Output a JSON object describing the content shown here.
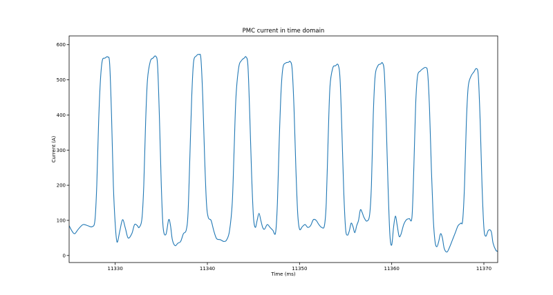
{
  "chart_data": {
    "type": "line",
    "title": "PMC current in time domain",
    "xlabel": "Time (ms)",
    "ylabel": "Current (A)",
    "xlim": [
      11325,
      11371.5
    ],
    "ylim": [
      -20,
      625
    ],
    "xticks": [
      11330,
      11340,
      11350,
      11360,
      11370
    ],
    "yticks": [
      0,
      100,
      200,
      300,
      400,
      500,
      600
    ],
    "grid": false,
    "line_color": "#1f77b4",
    "series": [
      {
        "name": "",
        "points": [
          [
            11325.0,
            85
          ],
          [
            11325.3,
            70
          ],
          [
            11325.6,
            62
          ],
          [
            11326.0,
            75
          ],
          [
            11326.5,
            88
          ],
          [
            11327.0,
            85
          ],
          [
            11327.5,
            82
          ],
          [
            11327.8,
            100
          ],
          [
            11328.0,
            200
          ],
          [
            11328.2,
            380
          ],
          [
            11328.4,
            500
          ],
          [
            11328.6,
            555
          ],
          [
            11328.9,
            562
          ],
          [
            11329.2,
            565
          ],
          [
            11329.4,
            545
          ],
          [
            11329.6,
            400
          ],
          [
            11329.8,
            200
          ],
          [
            11330.0,
            90
          ],
          [
            11330.2,
            38
          ],
          [
            11330.5,
            70
          ],
          [
            11330.8,
            102
          ],
          [
            11331.1,
            78
          ],
          [
            11331.4,
            50
          ],
          [
            11331.8,
            62
          ],
          [
            11332.1,
            88
          ],
          [
            11332.4,
            85
          ],
          [
            11332.6,
            80
          ],
          [
            11332.9,
            105
          ],
          [
            11333.1,
            200
          ],
          [
            11333.3,
            380
          ],
          [
            11333.5,
            500
          ],
          [
            11333.8,
            552
          ],
          [
            11334.1,
            562
          ],
          [
            11334.4,
            567
          ],
          [
            11334.6,
            540
          ],
          [
            11334.8,
            390
          ],
          [
            11335.0,
            200
          ],
          [
            11335.2,
            80
          ],
          [
            11335.5,
            60
          ],
          [
            11335.8,
            102
          ],
          [
            11336.0,
            85
          ],
          [
            11336.2,
            45
          ],
          [
            11336.5,
            28
          ],
          [
            11336.8,
            35
          ],
          [
            11337.1,
            40
          ],
          [
            11337.4,
            62
          ],
          [
            11337.7,
            72
          ],
          [
            11337.9,
            120
          ],
          [
            11338.1,
            280
          ],
          [
            11338.3,
            450
          ],
          [
            11338.5,
            550
          ],
          [
            11338.8,
            568
          ],
          [
            11339.1,
            572
          ],
          [
            11339.3,
            560
          ],
          [
            11339.5,
            450
          ],
          [
            11339.7,
            280
          ],
          [
            11339.9,
            150
          ],
          [
            11340.1,
            108
          ],
          [
            11340.4,
            100
          ],
          [
            11340.7,
            70
          ],
          [
            11341.0,
            48
          ],
          [
            11341.4,
            45
          ],
          [
            11341.8,
            40
          ],
          [
            11342.1,
            45
          ],
          [
            11342.4,
            70
          ],
          [
            11342.7,
            150
          ],
          [
            11342.9,
            300
          ],
          [
            11343.1,
            450
          ],
          [
            11343.4,
            535
          ],
          [
            11343.7,
            555
          ],
          [
            11344.0,
            562
          ],
          [
            11344.2,
            565
          ],
          [
            11344.4,
            540
          ],
          [
            11344.6,
            400
          ],
          [
            11344.8,
            230
          ],
          [
            11345.0,
            110
          ],
          [
            11345.2,
            80
          ],
          [
            11345.4,
            100
          ],
          [
            11345.6,
            120
          ],
          [
            11345.8,
            100
          ],
          [
            11346.0,
            80
          ],
          [
            11346.2,
            75
          ],
          [
            11346.5,
            88
          ],
          [
            11346.8,
            80
          ],
          [
            11347.1,
            72
          ],
          [
            11347.4,
            65
          ],
          [
            11347.6,
            150
          ],
          [
            11347.8,
            330
          ],
          [
            11348.0,
            470
          ],
          [
            11348.2,
            535
          ],
          [
            11348.5,
            548
          ],
          [
            11348.8,
            550
          ],
          [
            11349.0,
            552
          ],
          [
            11349.2,
            530
          ],
          [
            11349.4,
            420
          ],
          [
            11349.6,
            250
          ],
          [
            11349.8,
            120
          ],
          [
            11350.0,
            75
          ],
          [
            11350.3,
            82
          ],
          [
            11350.6,
            88
          ],
          [
            11350.9,
            80
          ],
          [
            11351.2,
            85
          ],
          [
            11351.5,
            102
          ],
          [
            11351.8,
            100
          ],
          [
            11352.1,
            88
          ],
          [
            11352.4,
            80
          ],
          [
            11352.7,
            85
          ],
          [
            11352.9,
            150
          ],
          [
            11353.1,
            330
          ],
          [
            11353.3,
            480
          ],
          [
            11353.6,
            533
          ],
          [
            11353.9,
            540
          ],
          [
            11354.2,
            542
          ],
          [
            11354.4,
            500
          ],
          [
            11354.6,
            350
          ],
          [
            11354.8,
            180
          ],
          [
            11355.0,
            75
          ],
          [
            11355.2,
            58
          ],
          [
            11355.4,
            70
          ],
          [
            11355.6,
            92
          ],
          [
            11355.8,
            82
          ],
          [
            11356.0,
            65
          ],
          [
            11356.2,
            85
          ],
          [
            11356.4,
            100
          ],
          [
            11356.6,
            130
          ],
          [
            11356.8,
            122
          ],
          [
            11357.0,
            108
          ],
          [
            11357.3,
            98
          ],
          [
            11357.6,
            115
          ],
          [
            11357.8,
            200
          ],
          [
            11358.0,
            400
          ],
          [
            11358.2,
            510
          ],
          [
            11358.5,
            540
          ],
          [
            11358.8,
            545
          ],
          [
            11359.0,
            548
          ],
          [
            11359.2,
            520
          ],
          [
            11359.4,
            380
          ],
          [
            11359.6,
            200
          ],
          [
            11359.8,
            60
          ],
          [
            11360.0,
            30
          ],
          [
            11360.2,
            80
          ],
          [
            11360.4,
            112
          ],
          [
            11360.6,
            85
          ],
          [
            11360.8,
            55
          ],
          [
            11361.0,
            60
          ],
          [
            11361.3,
            88
          ],
          [
            11361.6,
            102
          ],
          [
            11361.9,
            105
          ],
          [
            11362.2,
            110
          ],
          [
            11362.4,
            250
          ],
          [
            11362.6,
            430
          ],
          [
            11362.8,
            510
          ],
          [
            11363.1,
            525
          ],
          [
            11363.4,
            532
          ],
          [
            11363.7,
            535
          ],
          [
            11363.9,
            520
          ],
          [
            11364.1,
            420
          ],
          [
            11364.3,
            250
          ],
          [
            11364.5,
            110
          ],
          [
            11364.7,
            40
          ],
          [
            11364.9,
            25
          ],
          [
            11365.1,
            40
          ],
          [
            11365.3,
            62
          ],
          [
            11365.5,
            50
          ],
          [
            11365.7,
            20
          ],
          [
            11366.0,
            10
          ],
          [
            11366.3,
            25
          ],
          [
            11366.6,
            45
          ],
          [
            11366.9,
            65
          ],
          [
            11367.2,
            85
          ],
          [
            11367.5,
            92
          ],
          [
            11367.7,
            100
          ],
          [
            11367.9,
            200
          ],
          [
            11368.1,
            380
          ],
          [
            11368.3,
            480
          ],
          [
            11368.6,
            510
          ],
          [
            11368.9,
            522
          ],
          [
            11369.2,
            532
          ],
          [
            11369.4,
            510
          ],
          [
            11369.6,
            380
          ],
          [
            11369.8,
            200
          ],
          [
            11370.0,
            80
          ],
          [
            11370.2,
            55
          ],
          [
            11370.5,
            72
          ],
          [
            11370.8,
            68
          ],
          [
            11371.0,
            35
          ],
          [
            11371.3,
            15
          ],
          [
            11371.5,
            12
          ]
        ]
      }
    ]
  }
}
